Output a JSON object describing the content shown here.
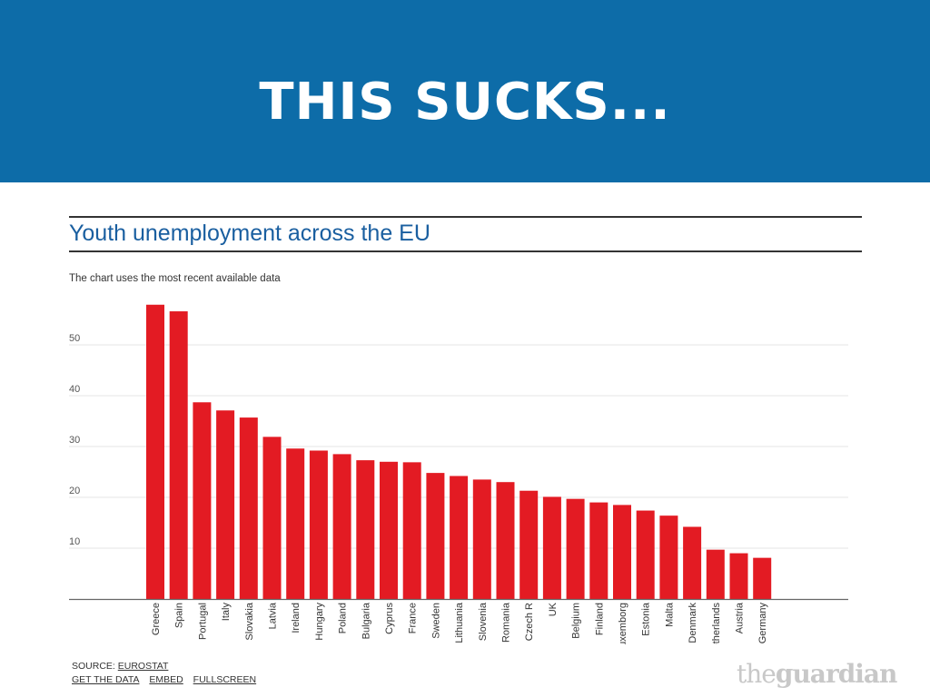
{
  "slide": {
    "headline": "THIS SUCKS..."
  },
  "chart": {
    "title": "Youth unemployment across the EU",
    "subtitle": "The chart uses the most recent available data"
  },
  "footer": {
    "source_label": "SOURCE: ",
    "source_link": "EUROSTAT",
    "get_data": "GET THE DATA",
    "embed": "EMBED",
    "fullscreen": "FULLSCREEN"
  },
  "brand": {
    "the": "the",
    "name": "guardian"
  },
  "colors": {
    "banner": "#0d6ca8",
    "bar": "#e31b23",
    "title": "#1a5fa0"
  },
  "chart_data": {
    "type": "bar",
    "title": "Youth unemployment across the EU",
    "subtitle": "The chart uses the most recent available data",
    "categories": [
      "Greece",
      "Spain",
      "Portugal",
      "Italy",
      "Slovakia",
      "Latvia",
      "Ireland",
      "Hungary",
      "Poland",
      "Bulgaria",
      "Cyprus",
      "France",
      "Sweden",
      "Lithuania",
      "Slovenia",
      "Romania",
      "Czech R",
      "UK",
      "Belgium",
      "Finland",
      "Luxemborg",
      "Estonia",
      "Malta",
      "Denmark",
      "Netherlands",
      "Austria",
      "Germany"
    ],
    "values": [
      57.9,
      56.6,
      38.7,
      37.1,
      35.7,
      31.9,
      29.6,
      29.2,
      28.5,
      27.3,
      27.0,
      26.9,
      24.8,
      24.2,
      23.5,
      23.0,
      21.3,
      20.1,
      19.7,
      19.0,
      18.5,
      17.4,
      16.4,
      14.2,
      9.7,
      9.0,
      8.1
    ],
    "yticks": [
      10,
      20,
      30,
      40,
      50
    ],
    "ylim": [
      0,
      60
    ],
    "xlabel": "",
    "ylabel": "",
    "grid": true
  }
}
